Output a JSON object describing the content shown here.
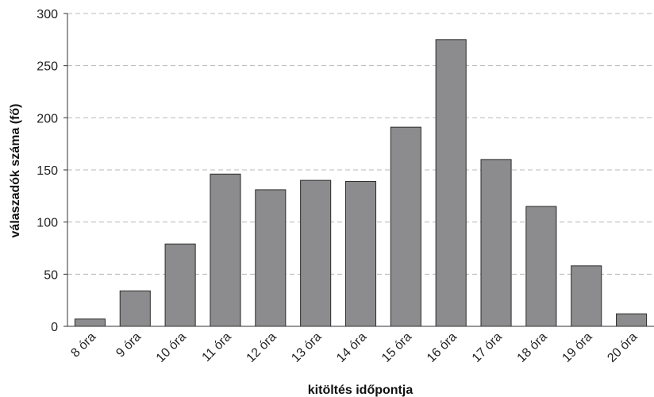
{
  "chart_data": {
    "type": "bar",
    "title": "",
    "xlabel": "kitöltés időpontja",
    "ylabel": "válaszadók száma (fő)",
    "categories": [
      "8 óra",
      "9 óra",
      "10 óra",
      "11 óra",
      "12 óra",
      "13 óra",
      "14 óra",
      "15 óra",
      "16 óra",
      "17 óra",
      "18 óra",
      "19 óra",
      "20 óra"
    ],
    "values": [
      7,
      34,
      79,
      146,
      131,
      140,
      139,
      191,
      275,
      160,
      115,
      58,
      12
    ],
    "ylim": [
      0,
      300
    ],
    "yticks": [
      0,
      50,
      100,
      150,
      200,
      250,
      300
    ],
    "grid": true,
    "legend": "none",
    "colors": {
      "bar": "#8c8c8e",
      "bar_edge": "#2b2b2b",
      "grid": "#b8b8b8"
    }
  }
}
